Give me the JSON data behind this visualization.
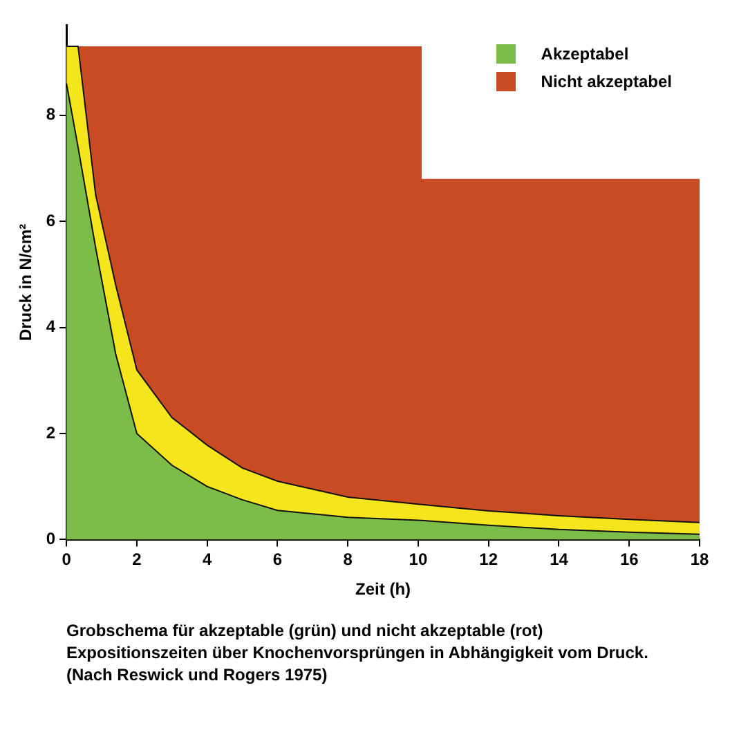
{
  "chart_data": {
    "type": "area",
    "xlabel": "Zeit (h)",
    "ylabel": "Druck in N/cm²",
    "x": [
      0,
      0.33,
      0.83,
      1.4,
      2,
      3,
      4,
      5,
      6,
      8,
      10.1,
      10.1,
      12,
      14,
      16,
      18
    ],
    "series": [
      {
        "name": "Akzeptabel",
        "color": "#7cbd4a",
        "values": [
          8.6,
          7.4,
          5.5,
          3.5,
          2.0,
          1.4,
          1.0,
          0.75,
          0.55,
          0.42,
          0.36,
          0.36,
          0.27,
          0.19,
          0.14,
          0.1
        ]
      },
      {
        "color": "#f5e51c",
        "values": [
          9.3,
          9.3,
          6.5,
          4.8,
          3.2,
          2.3,
          1.78,
          1.35,
          1.1,
          0.8,
          0.66,
          0.66,
          0.54,
          0.45,
          0.38,
          0.32
        ]
      },
      {
        "name": "Nicht akzeptabel",
        "color": "#c84b24",
        "values": [
          9.3,
          9.3,
          9.3,
          9.3,
          9.3,
          9.3,
          9.3,
          9.3,
          9.3,
          9.3,
          9.3,
          6.8,
          6.8,
          6.8,
          6.8,
          6.8
        ]
      }
    ],
    "xlim": [
      0,
      18
    ],
    "xticks": [
      0,
      2,
      4,
      6,
      8,
      10,
      12,
      14,
      16,
      18
    ],
    "ylim": [
      0,
      9.7
    ],
    "yticks": [
      0,
      2,
      4,
      6,
      8
    ],
    "grid": false,
    "legend": "top right",
    "annotations": [
      "Grobschema für akzeptable (grün) und nicht akzeptable (rot) Expositionszeiten über Knochenvorsprüngen in Abhängigkeit vom Druck. (Nach Reswick und Rogers 1975)"
    ]
  }
}
